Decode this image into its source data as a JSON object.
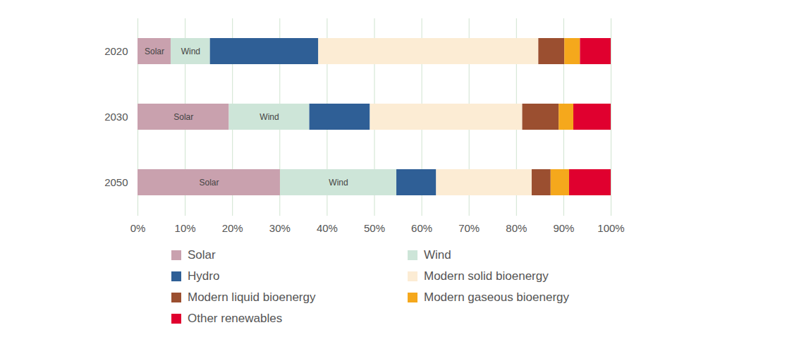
{
  "chart_data": {
    "type": "bar",
    "orientation": "horizontal",
    "stacked": true,
    "grid": true,
    "legend": "bottom",
    "categories": [
      "2020",
      "2030",
      "2050"
    ],
    "series": [
      {
        "name": "Solar",
        "color": "#c9a1ae",
        "values": [
          7.0,
          19.3,
          30.1
        ]
      },
      {
        "name": "Wind",
        "color": "#cde5d8",
        "values": [
          8.3,
          17.0,
          24.6
        ]
      },
      {
        "name": "Hydro",
        "color": "#2f5f96",
        "values": [
          22.9,
          12.8,
          8.4
        ]
      },
      {
        "name": "Modern solid bioenergy",
        "color": "#fcecd4",
        "values": [
          46.5,
          32.2,
          20.2
        ]
      },
      {
        "name": "Modern liquid bioenergy",
        "color": "#9b4f30",
        "values": [
          5.5,
          7.7,
          4.0
        ]
      },
      {
        "name": "Modern gaseous bioenergy",
        "color": "#f5a81c",
        "values": [
          3.3,
          3.1,
          3.9
        ]
      },
      {
        "name": "Other renewables",
        "color": "#e0002f",
        "values": [
          6.5,
          7.9,
          8.8
        ]
      }
    ],
    "annotations": [
      {
        "text": "Solar",
        "series": "Solar",
        "category": "2020"
      },
      {
        "text": "Wind",
        "series": "Wind",
        "category": "2020"
      },
      {
        "text": "Solar",
        "series": "Solar",
        "category": "2030"
      },
      {
        "text": "Wind",
        "series": "Wind",
        "category": "2030"
      },
      {
        "text": "Solar",
        "series": "Solar",
        "category": "2050"
      },
      {
        "text": "Wind",
        "series": "Wind",
        "category": "2050"
      }
    ],
    "xlim": [
      0,
      100
    ],
    "xticks": [
      {
        "value": 0,
        "label": "0%"
      },
      {
        "value": 10,
        "label": "10%"
      },
      {
        "value": 20,
        "label": "20%"
      },
      {
        "value": 30,
        "label": "30%"
      },
      {
        "value": 40,
        "label": "40%"
      },
      {
        "value": 50,
        "label": "50%"
      },
      {
        "value": 60,
        "label": "60%"
      },
      {
        "value": 70,
        "label": "70%"
      },
      {
        "value": 80,
        "label": "80%"
      },
      {
        "value": 90,
        "label": "90%"
      },
      {
        "value": 100,
        "label": "100%"
      }
    ]
  }
}
